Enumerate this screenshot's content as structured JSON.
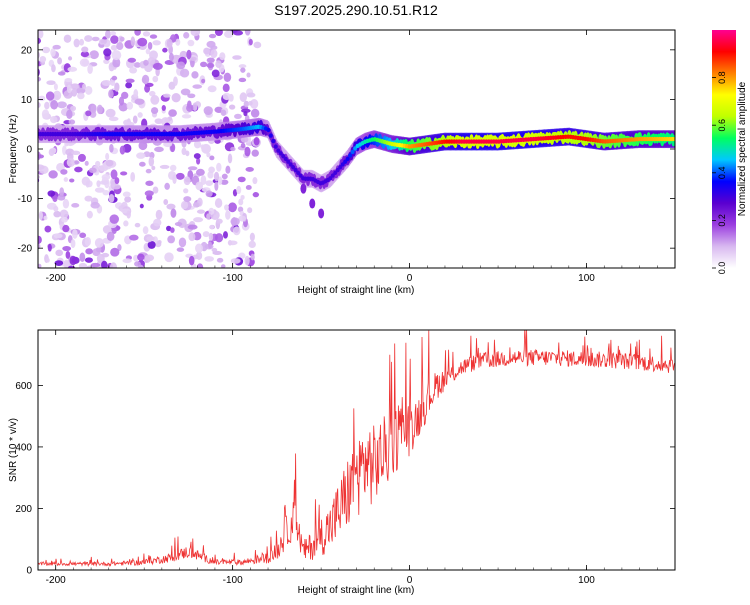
{
  "title": "S197.2025.290.10.51.R12",
  "chart_data": [
    {
      "type": "heatmap",
      "title": "S197.2025.290.10.51.R12",
      "xlabel": "Height of straight line (km)",
      "ylabel": "Frequency (Hz)",
      "xlim": [
        -210,
        150
      ],
      "ylim": [
        -24,
        24
      ],
      "xticks": [
        -200,
        -100,
        0,
        100
      ],
      "yticks": [
        -20,
        -10,
        0,
        10,
        20
      ],
      "colorbar": {
        "label": "Normalized spectral amplitude",
        "range": [
          0,
          1
        ],
        "ticks": [
          "0.0",
          "0.2",
          "0.4",
          "0.6",
          "0.8"
        ],
        "colors": [
          "#ffffff",
          "#d8b8f0",
          "#9b3ee0",
          "#5a00d0",
          "#0000ff",
          "#00c8ff",
          "#00ff60",
          "#c0ff00",
          "#ffff00",
          "#ff8000",
          "#ff0000",
          "#ff0090"
        ]
      },
      "ridge": {
        "x": [
          -205,
          -190,
          -170,
          -150,
          -130,
          -110,
          -95,
          -85,
          -80,
          -75,
          -70,
          -65,
          -60,
          -55,
          -50,
          -45,
          -40,
          -35,
          -30,
          -25,
          -20,
          -10,
          0,
          10,
          20,
          30,
          50,
          70,
          90,
          100,
          110,
          130,
          150
        ],
        "freq": [
          3,
          3,
          3,
          3,
          3,
          3.5,
          4,
          4.5,
          4,
          0,
          -2,
          -4,
          -6,
          -6,
          -7,
          -6,
          -4,
          -2,
          0.5,
          1.5,
          2,
          1,
          0.5,
          1,
          1.5,
          1.5,
          1.5,
          2,
          2.5,
          2,
          1.5,
          2,
          2
        ],
        "amplitude": [
          0.3,
          0.3,
          0.35,
          0.35,
          0.35,
          0.35,
          0.4,
          0.45,
          0.35,
          0.3,
          0.3,
          0.3,
          0.3,
          0.3,
          0.3,
          0.3,
          0.3,
          0.35,
          0.45,
          0.5,
          0.55,
          0.65,
          0.8,
          0.85,
          0.9,
          0.95,
          0.95,
          0.95,
          0.9,
          0.9,
          0.85,
          0.8,
          0.75
        ]
      },
      "noise_columns": [
        -205,
        -180,
        -155,
        -125,
        -100
      ],
      "branch": {
        "x": [
          -60,
          -55,
          -50
        ],
        "freq": [
          -8,
          -11,
          -13
        ]
      }
    },
    {
      "type": "line",
      "xlabel": "Height of straight line (km)",
      "ylabel": "SNR (10 * v/v)",
      "xlim": [
        -210,
        150
      ],
      "ylim": [
        0,
        780
      ],
      "xticks": [
        -200,
        -100,
        0,
        100
      ],
      "yticks": [
        0,
        200,
        400,
        600
      ],
      "series": [
        {
          "name": "SNR",
          "color": "#ee3333",
          "x": [
            -210,
            -190,
            -170,
            -150,
            -135,
            -125,
            -110,
            -95,
            -85,
            -80,
            -75,
            -70,
            -65,
            -60,
            -55,
            -50,
            -45,
            -40,
            -35,
            -30,
            -25,
            -20,
            -15,
            -10,
            -5,
            0,
            5,
            10,
            15,
            20,
            25,
            30,
            40,
            60,
            80,
            100,
            120,
            140,
            150
          ],
          "value": [
            20,
            20,
            20,
            25,
            40,
            60,
            25,
            25,
            35,
            40,
            60,
            120,
            170,
            60,
            80,
            110,
            140,
            190,
            250,
            300,
            350,
            340,
            380,
            400,
            450,
            460,
            500,
            550,
            600,
            620,
            640,
            660,
            680,
            690,
            690,
            685,
            680,
            670,
            665
          ],
          "spread": [
            10,
            10,
            10,
            15,
            25,
            35,
            15,
            15,
            25,
            30,
            50,
            90,
            110,
            60,
            80,
            110,
            130,
            170,
            200,
            220,
            240,
            220,
            200,
            190,
            170,
            150,
            120,
            100,
            80,
            60,
            50,
            45,
            45,
            45,
            45,
            45,
            45,
            45,
            45
          ]
        }
      ]
    }
  ]
}
